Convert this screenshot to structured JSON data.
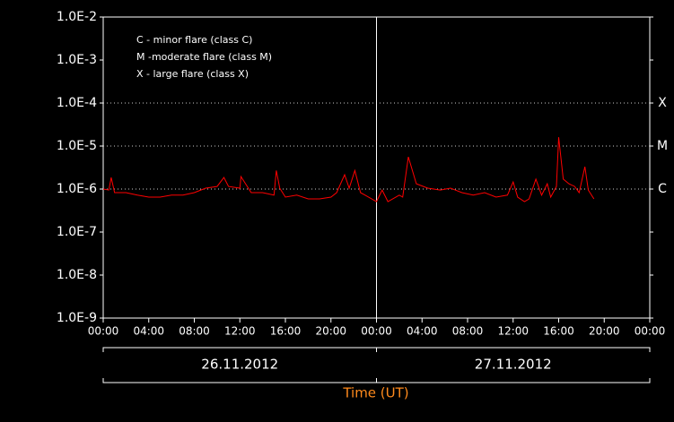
{
  "chart_data": {
    "type": "line",
    "xlabel": "Time (UT)",
    "log_y": true,
    "xlim": [
      0,
      48
    ],
    "ylim": [
      1e-09,
      0.01
    ],
    "xticks": [
      {
        "value": 0,
        "label": "00:00"
      },
      {
        "value": 4,
        "label": "04:00"
      },
      {
        "value": 8,
        "label": "08:00"
      },
      {
        "value": 12,
        "label": "12:00"
      },
      {
        "value": 16,
        "label": "16:00"
      },
      {
        "value": 20,
        "label": "20:00"
      },
      {
        "value": 24,
        "label": "00:00"
      },
      {
        "value": 28,
        "label": "04:00"
      },
      {
        "value": 32,
        "label": "08:00"
      },
      {
        "value": 36,
        "label": "12:00"
      },
      {
        "value": 40,
        "label": "16:00"
      },
      {
        "value": 44,
        "label": "20:00"
      },
      {
        "value": 48,
        "label": "00:00"
      }
    ],
    "yticks": [
      {
        "value": 0.01,
        "label": "1.0E-2"
      },
      {
        "value": 0.001,
        "label": "1.0E-3"
      },
      {
        "value": 0.0001,
        "label": "1.0E-4"
      },
      {
        "value": 1e-05,
        "label": "1.0E-5"
      },
      {
        "value": 1e-06,
        "label": "1.0E-6"
      },
      {
        "value": 1e-07,
        "label": "1.0E-7"
      },
      {
        "value": 1e-08,
        "label": "1.0E-8"
      },
      {
        "value": 1e-09,
        "label": "1.0E-9"
      }
    ],
    "flare_levels": [
      {
        "value": 0.0001,
        "label": "X"
      },
      {
        "value": 1e-05,
        "label": "M"
      },
      {
        "value": 1e-06,
        "label": "C"
      }
    ],
    "legend_notes": [
      "C - minor flare (class C)",
      "M -moderate flare (class M)",
      "X - large flare (class X)"
    ],
    "x_groups": [
      {
        "label": "26.11.2012",
        "start": 0,
        "end": 24
      },
      {
        "label": "27.11.2012",
        "start": 24,
        "end": 48
      }
    ],
    "series": [
      {
        "color": "#ff0000",
        "x": [
          0,
          0.5,
          0.7,
          1,
          2,
          3,
          4,
          5,
          6,
          7,
          8,
          9,
          10,
          10.6,
          11,
          12,
          12.1,
          13,
          14,
          15,
          15.2,
          15.5,
          16,
          17,
          18,
          19,
          20,
          20.5,
          21.2,
          21.6,
          22.1,
          22.6,
          23,
          24,
          24.5,
          25,
          26,
          26.3,
          26.8,
          27.5,
          28.5,
          29.6,
          30.5,
          31.5,
          32.5,
          33.5,
          34.5,
          35.5,
          36,
          36.4,
          37,
          37.4,
          38,
          38.5,
          39,
          39.3,
          39.8,
          40,
          40.4,
          40.9,
          41.4,
          41.8,
          42.3,
          42.6,
          43.1
        ],
        "values": [
          1e-06,
          9.5e-07,
          1.86e-06,
          8.25e-07,
          8.25e-07,
          7.2e-07,
          6.5e-07,
          6.5e-07,
          7.2e-07,
          7.2e-07,
          8.25e-07,
          1.05e-06,
          1.15e-06,
          1.86e-06,
          1.15e-06,
          1.05e-06,
          1.95e-06,
          8.25e-07,
          8.25e-07,
          7.2e-07,
          2.7e-06,
          1.05e-06,
          6.5e-07,
          7.2e-07,
          5.9e-07,
          5.9e-07,
          6.5e-07,
          8.25e-07,
          2.15e-06,
          1.05e-06,
          2.7e-06,
          8.25e-07,
          7.2e-07,
          5.1e-07,
          9.5e-07,
          5.1e-07,
          7.2e-07,
          6.5e-07,
          5.6e-06,
          1.33e-06,
          1.05e-06,
          9.5e-07,
          1.05e-06,
          8.25e-07,
          7.2e-07,
          8.25e-07,
          6.5e-07,
          7.2e-07,
          1.46e-06,
          6.5e-07,
          5.1e-07,
          5.9e-07,
          1.7e-06,
          7.2e-07,
          1.33e-06,
          6.5e-07,
          1.15e-06,
          1.6e-05,
          1.7e-06,
          1.33e-06,
          1.15e-06,
          8.25e-07,
          3.3e-06,
          9.5e-07,
          5.9e-07
        ]
      }
    ]
  }
}
